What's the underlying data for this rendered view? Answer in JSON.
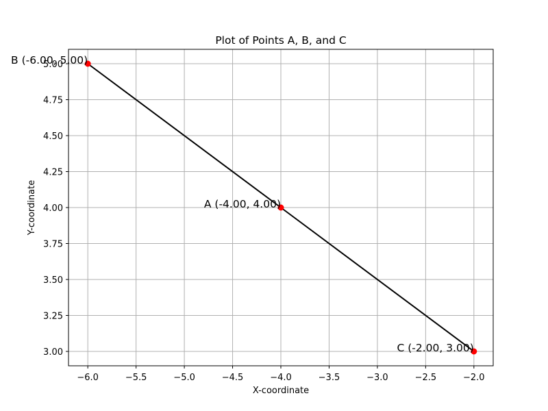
{
  "chart_data": {
    "type": "line",
    "title": "Plot of Points A, B, and C",
    "xlabel": "X-coordinate",
    "ylabel": "Y-coordinate",
    "xlim": [
      -6.2,
      -1.8
    ],
    "ylim": [
      2.9,
      5.1
    ],
    "xticks": [
      -6.0,
      -5.5,
      -5.0,
      -4.5,
      -4.0,
      -3.5,
      -3.0,
      -2.5,
      -2.0
    ],
    "xtick_labels": [
      "−6.0",
      "−5.5",
      "−5.0",
      "−4.5",
      "−4.0",
      "−3.5",
      "−3.0",
      "−2.5",
      "−2.0"
    ],
    "yticks": [
      3.0,
      3.25,
      3.5,
      3.75,
      4.0,
      4.25,
      4.5,
      4.75,
      5.0
    ],
    "ytick_labels": [
      "3.00",
      "3.25",
      "3.50",
      "3.75",
      "4.00",
      "4.25",
      "4.50",
      "4.75",
      "5.00"
    ],
    "grid": true,
    "line_color": "#000000",
    "point_color": "#ff0000",
    "line_order": [
      "B",
      "A",
      "C"
    ],
    "points": [
      {
        "id": "A",
        "x": -4.0,
        "y": 4.0,
        "label": "A (-4.00, 4.00)"
      },
      {
        "id": "B",
        "x": -6.0,
        "y": 5.0,
        "label": "B (-6.00, 5.00)"
      },
      {
        "id": "C",
        "x": -2.0,
        "y": 3.0,
        "label": "C (-2.00, 3.00)"
      }
    ]
  }
}
